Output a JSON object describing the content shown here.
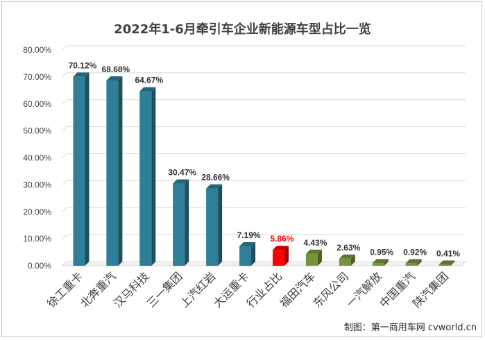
{
  "chart_data": {
    "type": "bar",
    "title": "2022年1-6月牵引车企业新能源车型占比一览",
    "xlabel": "",
    "ylabel": "",
    "ylim": [
      0,
      80
    ],
    "yticks": [
      "0.00%",
      "10.00%",
      "20.00%",
      "30.00%",
      "40.00%",
      "50.00%",
      "60.00%",
      "70.00%",
      "80.00%"
    ],
    "grid": true,
    "categories": [
      "徐工重卡",
      "北奔重汽",
      "汉马科技",
      "三一集团",
      "上汽红岩",
      "大运重卡",
      "行业占比",
      "福田汽车",
      "东风公司",
      "一汽解放",
      "中国重汽",
      "陕汽集团"
    ],
    "values": [
      70.12,
      68.68,
      64.67,
      30.47,
      28.66,
      7.19,
      5.86,
      4.43,
      2.63,
      0.95,
      0.92,
      0.41
    ],
    "value_labels": [
      "70.12%",
      "68.68%",
      "64.67%",
      "30.47%",
      "28.66%",
      "7.19%",
      "5.86%",
      "4.43%",
      "2.63%",
      "0.95%",
      "0.92%",
      "0.41%"
    ],
    "bar_colors": [
      "#2e7f97",
      "#2e7f97",
      "#2e7f97",
      "#2e7f97",
      "#2e7f97",
      "#2e7f97",
      "#ff0000",
      "#77933c",
      "#77933c",
      "#77933c",
      "#77933c",
      "#77933c"
    ],
    "label_colors": [
      "#333333",
      "#333333",
      "#333333",
      "#333333",
      "#333333",
      "#333333",
      "#ff0000",
      "#333333",
      "#333333",
      "#333333",
      "#333333",
      "#333333"
    ]
  },
  "watermark": "制图：第一商用车网 cvworld.cn"
}
